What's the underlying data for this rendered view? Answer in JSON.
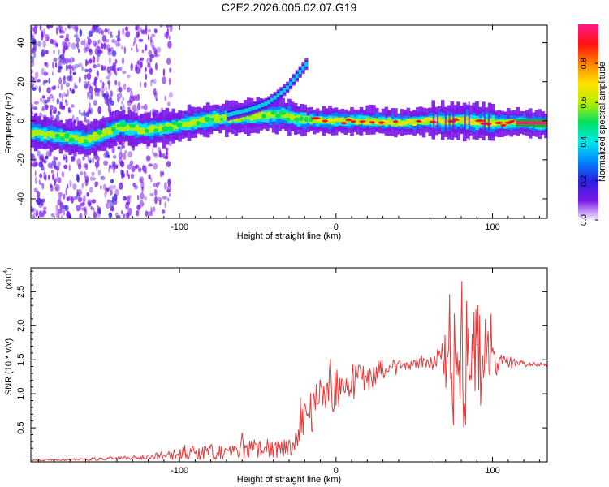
{
  "title": "C2E2.2026.005.02.07.G19",
  "chart_data": [
    {
      "type": "heatmap",
      "xlabel": "Height of straight line (km)",
      "ylabel": "Frequency (Hz)",
      "xlim": [
        -195,
        135
      ],
      "ylim": [
        -50,
        49
      ],
      "xticks": [
        -100,
        0,
        100
      ],
      "yticks": [
        -40,
        -20,
        0,
        20,
        40
      ],
      "xtick_labels": [
        "-100",
        "0",
        "100"
      ],
      "ytick_labels": [
        "-40",
        "-20",
        "0",
        "20",
        "40"
      ],
      "ridge": {
        "x": [
          -195,
          -175,
          -160,
          -150,
          -140,
          -120,
          -100,
          -80,
          -60,
          -45,
          -35,
          -25,
          -15,
          0,
          20,
          40,
          60,
          80,
          100,
          115,
          135
        ],
        "y": [
          -6,
          -8,
          -10,
          -7,
          -3,
          -5,
          -2,
          1,
          2,
          3,
          3,
          1,
          0,
          0,
          0,
          -1,
          0,
          0,
          -1,
          -1,
          -2
        ]
      },
      "branch": {
        "x": [
          -70,
          -55,
          -45,
          -38,
          -32,
          -25,
          -20
        ],
        "y": [
          3,
          6,
          9,
          13,
          17,
          24,
          29
        ]
      },
      "colorbar": {
        "label": "Normalized spectral amplitude",
        "range": [
          0,
          1
        ],
        "ticks": [
          0.0,
          0.2,
          0.4,
          0.6,
          0.8
        ],
        "tick_labels": [
          "0.0",
          "0.2",
          "0.4",
          "0.6",
          "0.8"
        ],
        "colors": [
          "#f6eefc",
          "#7a18e8",
          "#2a20e0",
          "#0088ff",
          "#00e8e8",
          "#00e060",
          "#b8ee00",
          "#ffe000",
          "#ff8000",
          "#ff1010",
          "#ff1a8c"
        ]
      }
    },
    {
      "type": "line",
      "xlabel": "Height of straight line (km)",
      "ylabel": "SNR (10 * v/v)",
      "yscale_label": "(x10",
      "yscale_exp": "4",
      "xlim": [
        -195,
        135
      ],
      "ylim": [
        0,
        2.85
      ],
      "xticks": [
        -100,
        0,
        100
      ],
      "yticks": [
        0.5,
        1.0,
        1.5,
        2.0,
        2.5
      ],
      "xtick_labels": [
        "-100",
        "0",
        "100"
      ],
      "ytick_labels": [
        "0.5",
        "1.0",
        "1.5",
        "2.0",
        "2.5"
      ],
      "series": [
        {
          "name": "SNR",
          "color": "#e83a3a",
          "envelope": {
            "x": [
              -195,
              -160,
              -130,
              -110,
              -100,
              -80,
              -60,
              -40,
              -28,
              -20,
              -14,
              -5,
              5,
              15,
              30,
              45,
              60,
              68,
              72,
              78,
              85,
              92,
              100,
              115,
              135
            ],
            "mean": [
              0.02,
              0.04,
              0.06,
              0.1,
              0.12,
              0.14,
              0.18,
              0.2,
              0.2,
              0.55,
              0.8,
              0.95,
              1.1,
              1.2,
              1.35,
              1.42,
              1.45,
              1.5,
              1.45,
              1.5,
              1.45,
              1.5,
              1.45,
              1.45,
              1.42
            ],
            "amplitude": [
              0.01,
              0.02,
              0.03,
              0.06,
              0.1,
              0.12,
              0.14,
              0.14,
              0.12,
              0.4,
              0.35,
              0.35,
              0.3,
              0.25,
              0.15,
              0.08,
              0.08,
              0.25,
              1.0,
              1.3,
              1.0,
              0.9,
              0.25,
              0.05,
              0.03
            ]
          }
        }
      ]
    }
  ]
}
